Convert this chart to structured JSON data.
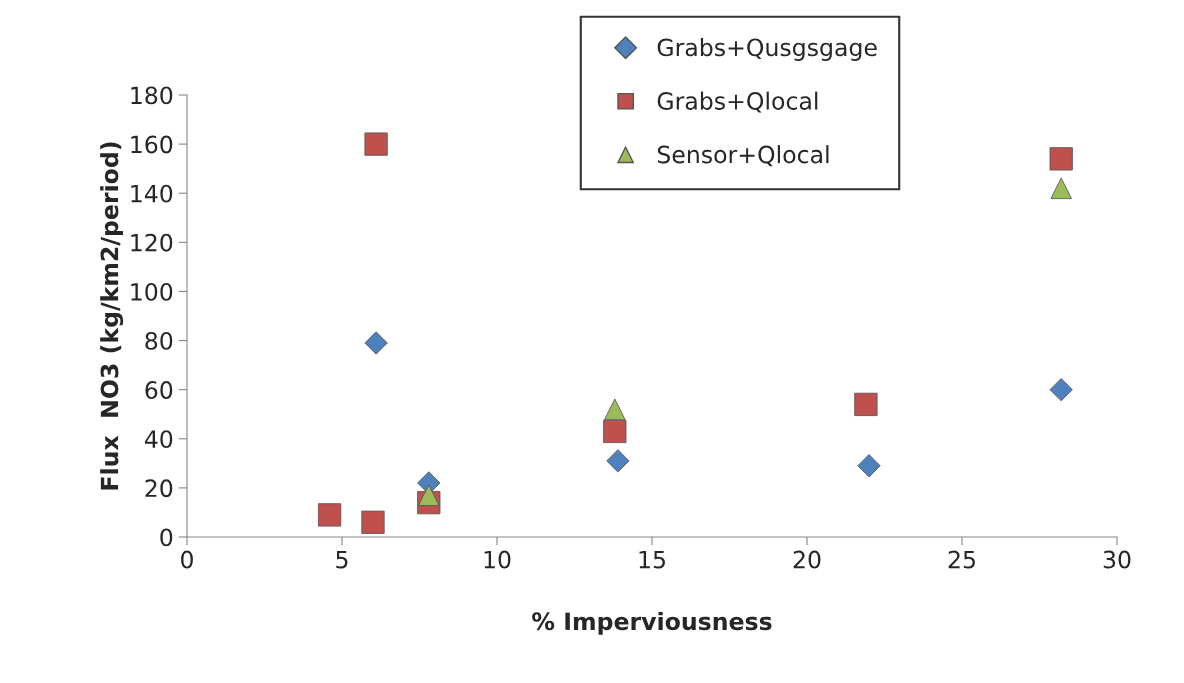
{
  "chart_data": {
    "type": "scatter",
    "xlabel": "% Imperviousness",
    "ylabel": "Flux  NO3 (kg/km2/period)",
    "xlim": [
      0,
      30
    ],
    "xticks": [
      0,
      5,
      10,
      15,
      20,
      25,
      30
    ],
    "ylim": [
      0,
      180
    ],
    "yticks": [
      0,
      20,
      40,
      60,
      80,
      100,
      120,
      140,
      160,
      180
    ],
    "grid": false,
    "legend": "top",
    "series": [
      {
        "name": "Grabs+Qusgsgage",
        "color": "#4f81bd",
        "marker": "diamond",
        "x": [
          6.1,
          7.8,
          13.9,
          22,
          28.2
        ],
        "values": [
          79,
          22,
          31,
          29,
          60
        ]
      },
      {
        "name": "Grabs+Qlocal",
        "color": "#c0504d",
        "marker": "square",
        "x": [
          4.6,
          6,
          6.1,
          7.8,
          13.8,
          21.9,
          28.2
        ],
        "values": [
          9,
          6,
          160,
          14,
          43,
          54,
          154
        ]
      },
      {
        "name": "Sensor+Qlocal",
        "color": "#9bbb59",
        "marker": "triangle",
        "x": [
          7.8,
          13.8,
          28.2
        ],
        "values": [
          17,
          52,
          142
        ]
      }
    ]
  }
}
